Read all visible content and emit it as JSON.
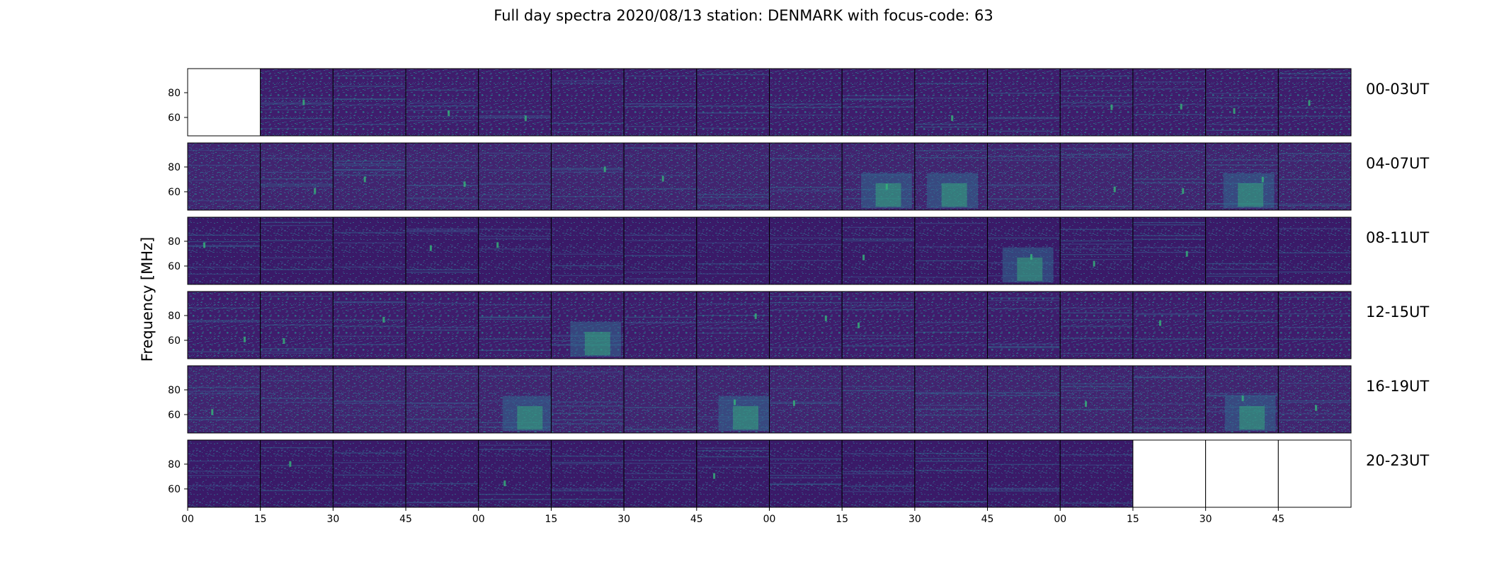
{
  "title": "Full day spectra 2020/08/13 station: DENMARK with focus-code: 63",
  "chart_data": {
    "type": "heatmap",
    "title": "Full day spectra 2020/08/13 station: DENMARK with focus-code: 63",
    "ylabel": "Frequency [MHz]",
    "xlabel": "",
    "y_ticks": [
      "80",
      "60"
    ],
    "x_ticks": [
      "00",
      "15",
      "30",
      "45",
      "00",
      "15",
      "30",
      "45",
      "00",
      "15",
      "30",
      "45",
      "00",
      "15",
      "30",
      "45"
    ],
    "colormap": "viridis",
    "colors": {
      "background": "#3f1d6c",
      "mid": "#31688e",
      "high": "#35b779",
      "peak": "#fde725"
    },
    "rows": [
      {
        "label": "00-03UT",
        "empty": [
          0
        ],
        "bright": []
      },
      {
        "label": "04-07UT",
        "empty": [],
        "bright": [
          9,
          10,
          14
        ]
      },
      {
        "label": "08-11UT",
        "empty": [],
        "bright": [
          11
        ]
      },
      {
        "label": "12-15UT",
        "empty": [],
        "bright": [
          5
        ]
      },
      {
        "label": "16-19UT",
        "empty": [],
        "bright": [
          4,
          7,
          14
        ]
      },
      {
        "label": "20-23UT",
        "empty": [
          13,
          14,
          15
        ],
        "bright": []
      }
    ]
  }
}
